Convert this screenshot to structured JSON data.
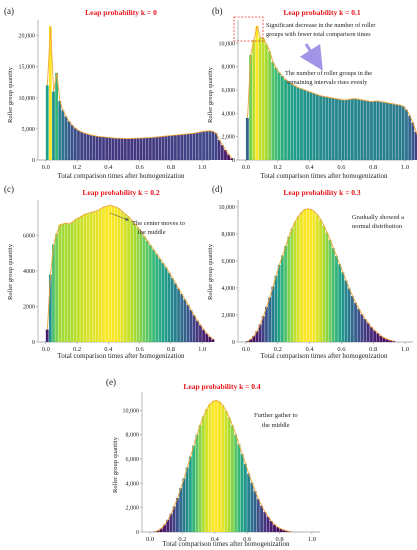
{
  "colors": {
    "title": "#e8141b",
    "axis": "#999999",
    "outline": "#f0a33a",
    "arrow": "#a294e6",
    "dash": "#ee3333",
    "text": "#222222"
  },
  "chart_data": [
    {
      "type": "bar",
      "panel_label": "(a)",
      "title": "Leap probability  k = 0",
      "xlabel": "Total comparison times after homogenization",
      "ylabel": "Roller group quantity",
      "xlim": [
        -0.05,
        1.05
      ],
      "ylim": [
        0,
        22500
      ],
      "xticks": [
        0.0,
        0.2,
        0.4,
        0.6,
        0.8,
        1.0
      ],
      "xtick_labels": [
        "0.0",
        "0.2",
        "0.4",
        "0.6",
        "0.8",
        "1.0"
      ],
      "yticks": [
        0,
        5000,
        10000,
        15000,
        20000
      ],
      "ytick_labels": [
        "0",
        "5,000",
        "10,000",
        "15,000",
        "20,000"
      ],
      "bin_width": 0.02,
      "x_start": 0.01,
      "values": [
        12000,
        21500,
        11000,
        14000,
        9500,
        8000,
        7000,
        6200,
        5600,
        5100,
        4750,
        4500,
        4300,
        4150,
        4000,
        3900,
        3800,
        3750,
        3700,
        3650,
        3600,
        3550,
        3500,
        3480,
        3460,
        3450,
        3450,
        3460,
        3480,
        3500,
        3520,
        3550,
        3580,
        3600,
        3650,
        3700,
        3750,
        3800,
        3850,
        3900,
        3950,
        4000,
        4050,
        4100,
        4150,
        4200,
        4250,
        4300,
        4400,
        4500,
        4600,
        4650,
        4700,
        4600,
        4300,
        3200,
        2400,
        1600,
        900,
        250
      ],
      "annotations": []
    },
    {
      "type": "bar",
      "panel_label": "(b)",
      "title": "Leap probability  k = 0.1",
      "xlabel": "Total comparison times after homogenization",
      "ylabel": "Roller group quantity",
      "xlim": [
        -0.05,
        1.05
      ],
      "ylim": [
        0,
        12000
      ],
      "xticks": [
        0.0,
        0.2,
        0.4,
        0.6,
        0.8,
        1.0
      ],
      "xtick_labels": [
        "0.0",
        "0.2",
        "0.4",
        "0.6",
        "0.8",
        "1.0"
      ],
      "yticks": [
        0,
        2000,
        4000,
        6000,
        8000,
        10000
      ],
      "ytick_labels": [
        "0",
        "2,000",
        "4,000",
        "6,000",
        "8,000",
        "10,000"
      ],
      "bin_width": 0.02,
      "x_start": 0.01,
      "values": [
        3600,
        9000,
        10300,
        11500,
        10500,
        10400,
        9900,
        9300,
        8400,
        7900,
        7500,
        7200,
        6900,
        6700,
        6500,
        6350,
        6200,
        6100,
        6000,
        5900,
        5800,
        5700,
        5600,
        5500,
        5450,
        5400,
        5350,
        5300,
        5250,
        5200,
        5150,
        5150,
        5200,
        5250,
        5250,
        5200,
        5150,
        5100,
        5050,
        5000,
        5050,
        5050,
        5000,
        4950,
        4900,
        4850,
        4800,
        4750,
        4700,
        4600,
        4300,
        3800,
        3200,
        2400,
        1700,
        1100,
        600,
        250
      ],
      "annotations": [
        "Significant decrease in the number of roller",
        "groups with fewer total comparison times",
        "The number of roller groups in the",
        "remaining intervals rises evenly"
      ]
    },
    {
      "type": "bar",
      "panel_label": "(c)",
      "title": "Leap probability  k = 0.2",
      "xlabel": "Total comparison times after homogenization",
      "ylabel": "Roller group quantity",
      "xlim": [
        -0.05,
        1.05
      ],
      "ylim": [
        0,
        8000
      ],
      "xticks": [
        0.0,
        0.2,
        0.4,
        0.6,
        0.8,
        1.0
      ],
      "xtick_labels": [
        "0.0",
        "0.2",
        "0.4",
        "0.6",
        "0.8",
        "1.0"
      ],
      "yticks": [
        0,
        2000,
        4000,
        6000
      ],
      "ytick_labels": [
        "0",
        "2000",
        "4000",
        "6000"
      ],
      "bin_width": 0.02,
      "x_start": 0.01,
      "values": [
        700,
        3800,
        5500,
        6100,
        6600,
        6650,
        6700,
        6650,
        6750,
        6900,
        7000,
        7100,
        7200,
        7250,
        7300,
        7350,
        7400,
        7500,
        7600,
        7650,
        7700,
        7650,
        7600,
        7500,
        7350,
        7200,
        7050,
        6850,
        6650,
        6450,
        6200,
        5950,
        5700,
        5450,
        5200,
        4950,
        4700,
        4450,
        4200,
        3900,
        3600,
        3300,
        3000,
        2700,
        2400,
        2100,
        1800,
        1500,
        1200,
        950,
        700,
        480,
        300,
        150
      ],
      "annotations": [
        "The center moves to",
        "the middle"
      ]
    },
    {
      "type": "bar",
      "panel_label": "(d)",
      "title": "Leap probability  k = 0.3",
      "xlabel": "Total comparison times after homogenization",
      "ylabel": "Roller group quantity",
      "xlim": [
        -0.05,
        1.05
      ],
      "ylim": [
        0,
        10500
      ],
      "xticks": [
        0.0,
        0.2,
        0.4,
        0.6,
        0.8,
        1.0
      ],
      "xtick_labels": [
        "0.0",
        "0.2",
        "0.4",
        "0.6",
        "0.8",
        "1.0"
      ],
      "yticks": [
        0,
        2000,
        4000,
        6000,
        8000,
        10000
      ],
      "ytick_labels": [
        "0",
        "2,000",
        "4,000",
        "6,000",
        "8,000",
        "10,000"
      ],
      "bin_width": 0.02,
      "x_start": 0.01,
      "values": [
        50,
        200,
        450,
        800,
        1300,
        1900,
        2600,
        3300,
        4100,
        4900,
        5700,
        6400,
        7100,
        7800,
        8400,
        8900,
        9300,
        9600,
        9800,
        9850,
        9800,
        9650,
        9400,
        9050,
        8600,
        8100,
        7550,
        6950,
        6350,
        5750,
        5150,
        4550,
        3950,
        3400,
        2900,
        2450,
        2050,
        1700,
        1400,
        1100,
        850,
        650,
        450,
        300,
        200,
        120,
        60
      ],
      "annotations": [
        "Gradually showed a",
        "normal distribution"
      ]
    },
    {
      "type": "bar",
      "panel_label": "(e)",
      "title": "Leap probability  k = 0.4",
      "xlabel": "Total comparison times after homogenization",
      "ylabel": "Roller group quantity",
      "xlim": [
        -0.05,
        1.05
      ],
      "ylim": [
        0,
        11500
      ],
      "xticks": [
        0.0,
        0.2,
        0.4,
        0.6,
        0.8,
        1.0
      ],
      "xtick_labels": [
        "0.0",
        "0.2",
        "0.4",
        "0.6",
        "0.8",
        "1.0"
      ],
      "yticks": [
        0,
        2000,
        4000,
        6000,
        8000,
        10000
      ],
      "ytick_labels": [
        "0",
        "2,000",
        "4,000",
        "6,000",
        "8,000",
        "10,000"
      ],
      "bin_width": 0.02,
      "x_start": 0.03,
      "values": [
        30,
        120,
        300,
        600,
        1000,
        1500,
        2100,
        2800,
        3600,
        4400,
        5300,
        6200,
        7100,
        8000,
        8800,
        9500,
        10100,
        10500,
        10750,
        10800,
        10700,
        10400,
        9950,
        9400,
        8750,
        8000,
        7200,
        6400,
        5600,
        4800,
        4050,
        3350,
        2700,
        2150,
        1650,
        1250,
        900,
        600,
        400,
        250,
        150,
        80,
        30
      ],
      "annotations": [
        "Further gather to",
        "the middle"
      ]
    }
  ]
}
